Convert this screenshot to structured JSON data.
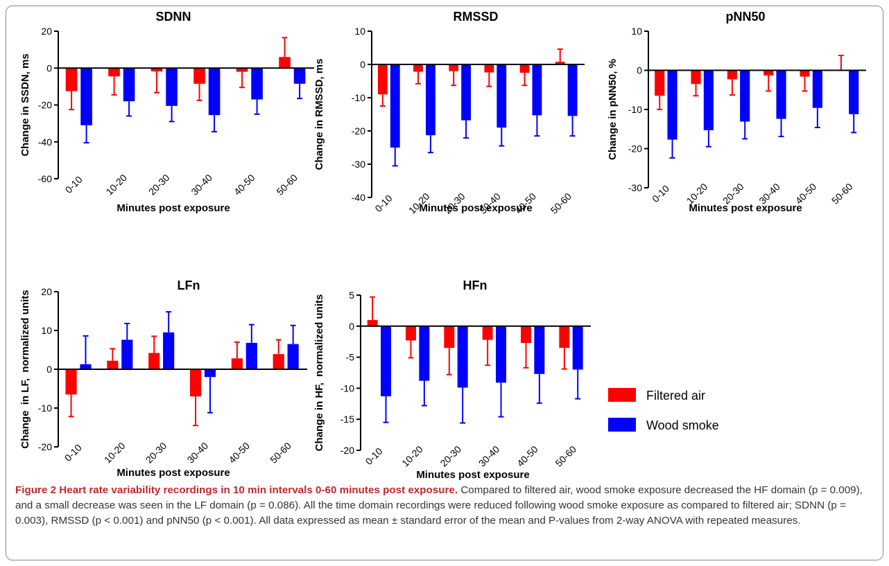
{
  "legend": [
    {
      "label": "Filtered air",
      "color": "#ff0000"
    },
    {
      "label": "Wood smoke",
      "color": "#0000ff"
    }
  ],
  "caption": {
    "title": "Figure 2 Heart rate variability recordings in 10 min intervals 0-60 minutes post exposure.",
    "text": "Compared to filtered air, wood smoke exposure decreased the HF domain (p = 0.009), and a small decrease was seen in the LF domain (p = 0.086). All the time domain recordings were reduced following wood smoke exposure as compared to filtered air; SDNN (p = 0.003), RMSSD (p < 0.001) and pNN50 (p < 0.001). All data expressed as mean ± standard error of the mean and P-values from 2-way ANOVA with repeated measures."
  },
  "chart_data": [
    {
      "type": "bar",
      "title": "SDNN",
      "xlabel": "Minutes post exposure",
      "ylabel": "Change in SSDN, ms",
      "ylim": [
        -60,
        20
      ],
      "yticks": [
        20,
        0,
        -20,
        -40,
        -60
      ],
      "categories": [
        "0-10",
        "10-20",
        "20-30",
        "30-40",
        "40-50",
        "50-60"
      ],
      "series": [
        {
          "name": "Filtered air",
          "values": [
            -12.5,
            -4.5,
            -1.8,
            -8.5,
            -2,
            6
          ],
          "errors": [
            10,
            10,
            11.5,
            9,
            8.5,
            10.5
          ]
        },
        {
          "name": "Wood smoke",
          "values": [
            -31,
            -18,
            -20.5,
            -25.5,
            -17,
            -8.5
          ],
          "errors": [
            9.5,
            8,
            8.5,
            9,
            8,
            8
          ]
        }
      ]
    },
    {
      "type": "bar",
      "title": "RMSSD",
      "xlabel": "Minutes post exposure",
      "ylabel": "Change in RMSSD, ms",
      "ylim": [
        -40,
        10
      ],
      "yticks": [
        10,
        0,
        -10,
        -20,
        -30,
        -40
      ],
      "categories": [
        "0-10",
        "10-20",
        "20-30",
        "30-40",
        "40-50",
        "50-60"
      ],
      "series": [
        {
          "name": "Filtered air",
          "values": [
            -9,
            -2.2,
            -2,
            -2.4,
            -2.5,
            0.8
          ],
          "errors": [
            3.5,
            3.6,
            4.3,
            4.2,
            3.8,
            3.8
          ]
        },
        {
          "name": "Wood smoke",
          "values": [
            -25,
            -21.3,
            -16.8,
            -19,
            -15.3,
            -15.5
          ],
          "errors": [
            5.5,
            5.2,
            5.3,
            5.5,
            6.2,
            6
          ]
        }
      ]
    },
    {
      "type": "bar",
      "title": "pNN50",
      "xlabel": "Minutes post exposure",
      "ylabel": "Change in pNN50, %",
      "ylim": [
        -30,
        10
      ],
      "yticks": [
        10,
        0,
        -10,
        -20,
        -30
      ],
      "categories": [
        "0-10",
        "10-20",
        "20-30",
        "30-40",
        "40-50",
        "50-60"
      ],
      "series": [
        {
          "name": "Filtered air",
          "values": [
            -6.5,
            -3.5,
            -2.3,
            -1.3,
            -1.6,
            0
          ],
          "errors": [
            3.5,
            3,
            4,
            4,
            3.7,
            3.8
          ]
        },
        {
          "name": "Wood smoke",
          "values": [
            -17.7,
            -15.3,
            -13.1,
            -12.4,
            -9.6,
            -11.2
          ],
          "errors": [
            4.7,
            4.2,
            4.4,
            4.5,
            5,
            4.7
          ]
        }
      ]
    },
    {
      "type": "bar",
      "title": "LFn",
      "xlabel": "Minutes post exposure",
      "ylabel": "Change  in LF,  normalized units",
      "ylim": [
        -20,
        20
      ],
      "yticks": [
        20,
        10,
        0,
        -10,
        -20
      ],
      "categories": [
        "0-10",
        "10-20",
        "20-30",
        "30-40",
        "40-50",
        "50-60"
      ],
      "series": [
        {
          "name": "Filtered air",
          "values": [
            -6.5,
            2.2,
            4.2,
            -7,
            2.8,
            3.9
          ],
          "errors": [
            5.7,
            3.1,
            4.3,
            7.5,
            4.2,
            3.7
          ]
        },
        {
          "name": "Wood smoke",
          "values": [
            1.3,
            7.6,
            9.5,
            -2,
            6.8,
            6.5
          ],
          "errors": [
            7.3,
            4.2,
            5.3,
            9.2,
            4.7,
            4.8
          ]
        }
      ]
    },
    {
      "type": "bar",
      "title": "HFn",
      "xlabel": "Minutes post exposure",
      "ylabel": "Change in HF,  normalized units",
      "ylim": [
        -20,
        5
      ],
      "yticks": [
        5,
        0,
        -5,
        -10,
        -15,
        -20
      ],
      "categories": [
        "0-10",
        "10-20",
        "20-30",
        "30-40",
        "40-50",
        "50-60"
      ],
      "series": [
        {
          "name": "Filtered air",
          "values": [
            1,
            -2.3,
            -3.5,
            -2.2,
            -2.7,
            -3.5
          ],
          "errors": [
            3.7,
            2.8,
            4.3,
            4.1,
            4,
            3.4
          ]
        },
        {
          "name": "Wood smoke",
          "values": [
            -11.3,
            -8.8,
            -9.9,
            -9.1,
            -7.7,
            -7
          ],
          "errors": [
            4.2,
            4,
            5.7,
            5.5,
            4.7,
            4.7
          ]
        }
      ]
    }
  ]
}
